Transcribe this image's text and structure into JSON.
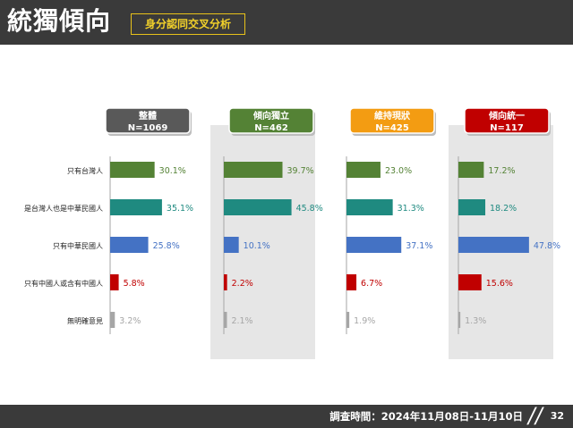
{
  "header": {
    "title": "統獨傾向",
    "subtitle": "身分認同交叉分析"
  },
  "footer": {
    "survey_date": "調查時間：2024年11月08日-11月10日",
    "page_number": "32"
  },
  "colors": {
    "header_bg": "#3a3a3a",
    "panel_bg": "#e6e6e6",
    "green": "#548235",
    "teal": "#1f8a80",
    "blue": "#4472c4",
    "red": "#c00000",
    "gray": "#a6a6a6",
    "group_overall": "#595959",
    "group_independence": "#548235",
    "group_status_quo": "#f39c12",
    "group_unification": "#c00000"
  },
  "chart_data": {
    "type": "bar",
    "orientation": "horizontal",
    "categories": [
      "只有台灣人",
      "是台灣人也是中華民國人",
      "只有中華民國人",
      "只有中國人或含有中國人",
      "無明確意見"
    ],
    "groups": [
      {
        "name": "整體",
        "n": "N=1069",
        "values": [
          30.1,
          35.1,
          25.8,
          5.8,
          3.2
        ],
        "labels": [
          "30.1%",
          "35.1%",
          "25.8%",
          "5.8%",
          "3.2%"
        ]
      },
      {
        "name": "傾向獨立",
        "n": "N=462",
        "values": [
          39.7,
          45.8,
          10.1,
          2.2,
          2.1
        ],
        "labels": [
          "39.7%",
          "45.8%",
          "10.1%",
          "2.2%",
          "2.1%"
        ]
      },
      {
        "name": "維持現狀",
        "n": "N=425",
        "values": [
          23.0,
          31.3,
          37.1,
          6.7,
          1.9
        ],
        "labels": [
          "23.0%",
          "31.3%",
          "37.1%",
          "6.7%",
          "1.9%"
        ]
      },
      {
        "name": "傾向統一",
        "n": "N=117",
        "values": [
          17.2,
          18.2,
          47.8,
          15.6,
          1.3
        ],
        "labels": [
          "17.2%",
          "18.2%",
          "47.8%",
          "15.6%",
          "1.3%"
        ]
      }
    ],
    "grid": false,
    "legend": "none"
  }
}
